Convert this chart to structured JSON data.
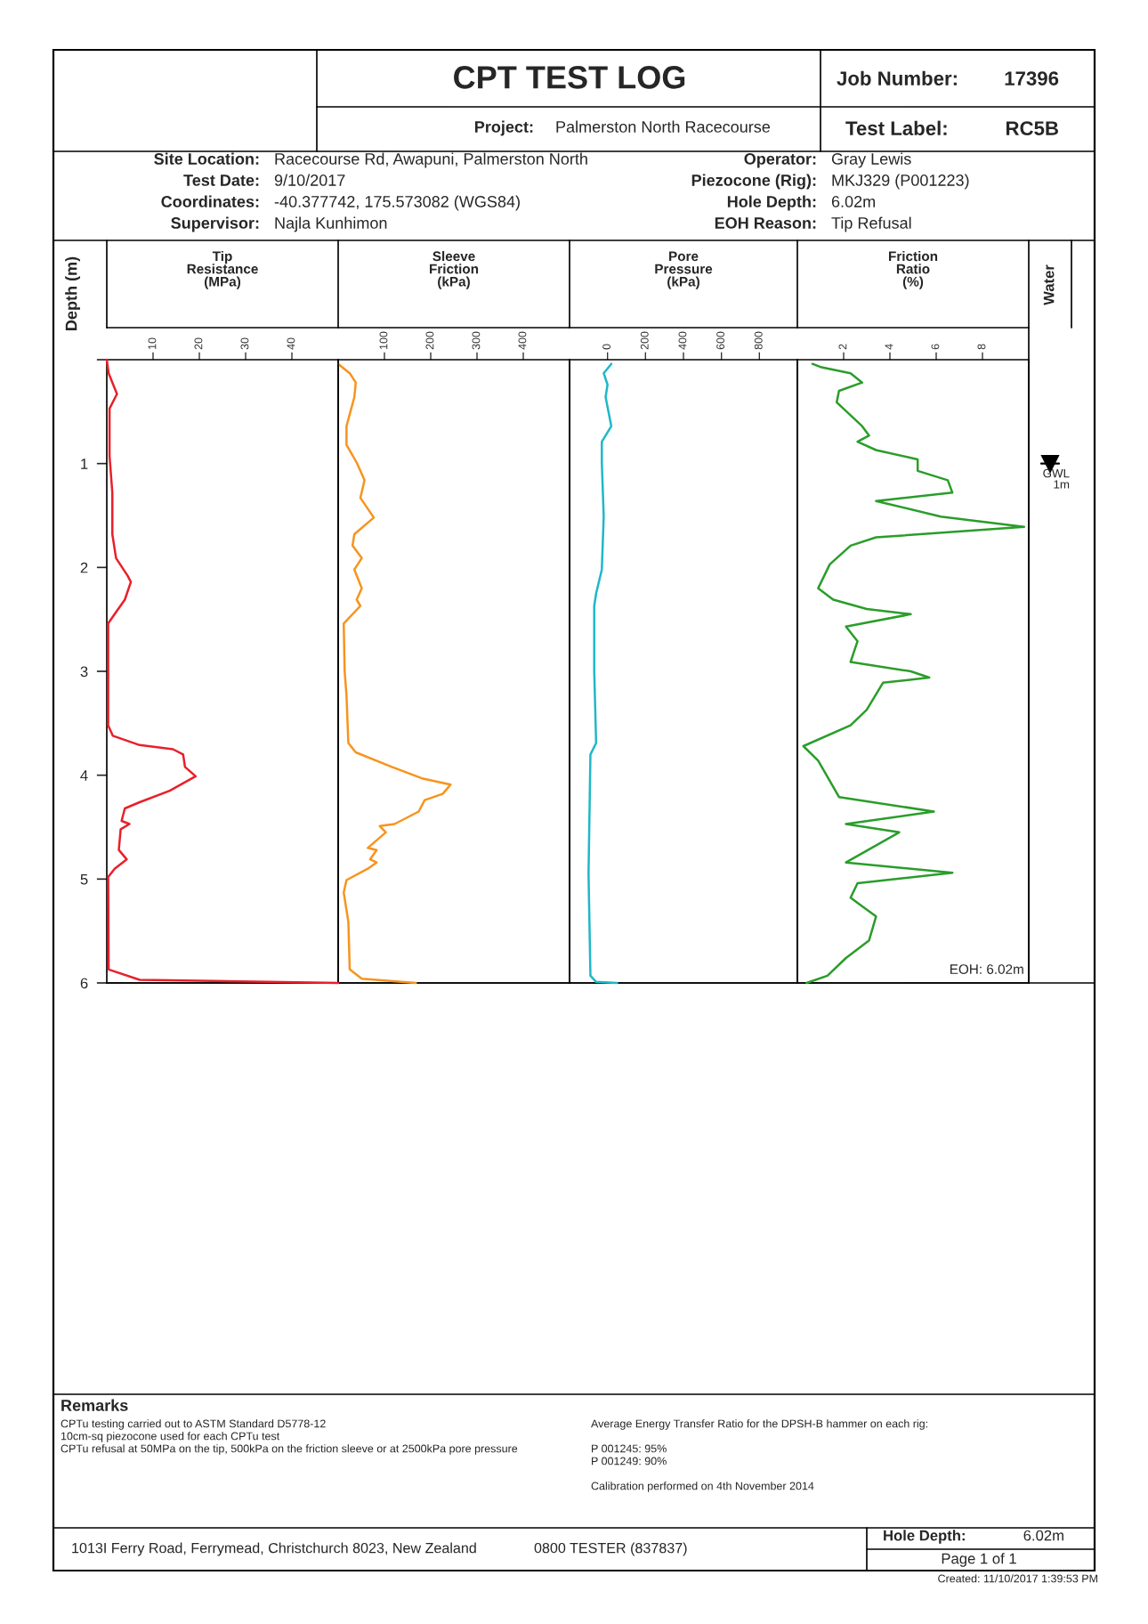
{
  "chart_data": [
    {
      "type": "other",
      "title": "CPT TEST LOG",
      "annotations": [
        "Job Number:",
        "17396",
        "Test Label:",
        "RC5B",
        "Project:",
        "Palmerston North Racecourse",
        "Site Location:",
        "Racecourse Rd, Awapuni, Palmerston North",
        "Test Date:",
        "9/10/2017",
        "Coordinates:",
        "-40.377742, 175.573082 (WGS84)",
        "Supervisor:",
        "Najla Kunhimon",
        "Operator:",
        "Gray Lewis",
        "Piezocone (Rig):",
        "MKJ329 (P001223)",
        "Hole Depth:",
        "6.02m",
        "EOH Reason:",
        "Tip Refusal"
      ]
    },
    {
      "type": "line",
      "title": "Tip\nResistance\n(MPa)",
      "ylabel": "Depth (m)",
      "xlim": [
        0,
        50
      ],
      "xticks": [
        10,
        20,
        30,
        40
      ],
      "ylim": [
        6,
        0
      ],
      "yticks": [
        {
          "value": 0,
          "label": null
        },
        1,
        2,
        3,
        4,
        5,
        6
      ],
      "series": [
        {
          "color": "#e8202a",
          "x": [
            0,
            0.4,
            2.2,
            0.6,
            0.6,
            1.2,
            1.2,
            2.0,
            4.5,
            5.2,
            3.9,
            2.0,
            0.3,
            0.3,
            1.3,
            7.1,
            14.3,
            16.5,
            16.9,
            19.2,
            13.6,
            7.1,
            3.9,
            3.2,
            4.9,
            3.0,
            2.6,
            4.3,
            1.7,
            0.3,
            0.4,
            7.1,
            50
          ],
          "values": [
            0,
            0.13,
            0.33,
            0.47,
            0.93,
            1.28,
            1.68,
            1.91,
            2.08,
            2.14,
            2.31,
            2.43,
            2.54,
            3.52,
            3.62,
            3.71,
            3.75,
            3.8,
            3.92,
            4.01,
            4.15,
            4.26,
            4.32,
            4.44,
            4.47,
            4.52,
            4.72,
            4.81,
            4.9,
            4.98,
            5.87,
            5.97,
            6.0
          ]
        }
      ]
    },
    {
      "type": "line",
      "title": "Sleeve\nFriction\n(kPa)",
      "xlim": [
        0,
        500
      ],
      "xticks": [
        100,
        200,
        300,
        400
      ],
      "ylim": [
        6,
        0
      ],
      "tick_labels": "x",
      "series": [
        {
          "color": "#f7941d",
          "x": [
            0,
            25,
            38,
            35,
            18,
            18,
            40,
            57,
            48,
            77,
            35,
            31,
            51,
            35,
            51,
            40,
            48,
            12,
            14,
            18,
            22,
            38,
            116,
            181,
            243,
            226,
            187,
            174,
            122,
            90,
            103,
            64,
            83,
            69,
            83,
            64,
            18,
            12,
            22,
            25,
            51,
            168
          ],
          "values": [
            0.04,
            0.13,
            0.22,
            0.36,
            0.64,
            0.82,
            0.99,
            1.16,
            1.33,
            1.52,
            1.68,
            1.79,
            1.91,
            2.02,
            2.2,
            2.31,
            2.37,
            2.54,
            3.0,
            3.23,
            3.69,
            3.78,
            3.92,
            4.03,
            4.09,
            4.18,
            4.24,
            4.35,
            4.47,
            4.49,
            4.55,
            4.7,
            4.72,
            4.81,
            4.84,
            4.9,
            5.01,
            5.13,
            5.41,
            5.87,
            5.96,
            6.0
          ]
        }
      ]
    },
    {
      "type": "line",
      "title": "Pore\nPressure\n(kPa)",
      "xlim": [
        -200,
        1000
      ],
      "xticks": [
        0,
        200,
        400,
        600,
        800
      ],
      "ylim": [
        6,
        0
      ],
      "tick_labels": "x",
      "series": [
        {
          "color": "#1fb8c8",
          "x": [
            20,
            -20,
            0,
            -10,
            20,
            -30,
            -30,
            -20,
            -30,
            -60,
            -70,
            -70,
            -60,
            -90,
            -100,
            -90,
            -60,
            50
          ],
          "values": [
            0.04,
            0.13,
            0.24,
            0.36,
            0.64,
            0.79,
            0.99,
            1.51,
            2.02,
            2.25,
            2.37,
            3.0,
            3.69,
            3.8,
            4.95,
            5.93,
            5.99,
            6.0
          ]
        }
      ]
    },
    {
      "type": "line",
      "title": "Friction\nRatio\n(%)",
      "xlim": [
        0,
        10
      ],
      "xticks": [
        2,
        4,
        6,
        8
      ],
      "ylim": [
        6,
        0
      ],
      "tick_labels": "x",
      "annotations": [
        "EOH: 6.02m"
      ],
      "ref_lines": [
        {
          "axis": "y",
          "value": 1,
          "label": "GWL\n1m"
        }
      ],
      "series": [
        {
          "color": "#2a9d2a",
          "x": [
            0.65,
            1.0,
            2.3,
            2.8,
            1.8,
            1.7,
            2.8,
            3.1,
            2.6,
            3.4,
            5.2,
            5.2,
            6.5,
            6.7,
            3.4,
            6.2,
            9.8,
            3.4,
            2.3,
            1.4,
            0.9,
            1.55,
            3.0,
            4.9,
            2.1,
            2.6,
            2.3,
            4.9,
            5.7,
            3.7,
            3.0,
            2.3,
            0.26,
            0.9,
            1.8,
            5.9,
            2.1,
            4.4,
            2.1,
            6.7,
            2.6,
            2.3,
            3.4,
            3.1,
            2.1,
            1.3,
            0.4
          ],
          "values": [
            0.04,
            0.07,
            0.13,
            0.22,
            0.3,
            0.41,
            0.64,
            0.73,
            0.79,
            0.87,
            0.96,
            1.07,
            1.16,
            1.28,
            1.36,
            1.51,
            1.61,
            1.71,
            1.79,
            1.97,
            2.2,
            2.31,
            2.4,
            2.45,
            2.57,
            2.71,
            2.91,
            3.0,
            3.06,
            3.11,
            3.37,
            3.52,
            3.72,
            3.86,
            4.21,
            4.35,
            4.47,
            4.55,
            4.84,
            4.94,
            5.04,
            5.18,
            5.36,
            5.59,
            5.76,
            5.93,
            6.0
          ]
        }
      ]
    },
    {
      "type": "other",
      "title": "Water"
    },
    {
      "type": "other",
      "title": "Remarks",
      "annotations": [
        "CPTu testing carried out to ASTM Standard D5778-12",
        "10cm-sq piezocone used for each CPTu test",
        "CPTu refusal at 50MPa on the tip, 500kPa on the friction sleeve or at 2500kPa pore pressure",
        "Average Energy Transfer Ratio for the DPSH-B hammer on each rig:",
        "P 001245: 95%",
        "P 001249: 90%",
        "Calibration performed on 4th November 2014",
        "1013I Ferry Road, Ferrymead, Christchurch 8023, New Zealand",
        "0800 TESTER (837837)",
        "Hole Depth:",
        "6.02m",
        "Page 1 of 1",
        "Created: 11/10/2017 1:39:53 PM"
      ]
    }
  ]
}
